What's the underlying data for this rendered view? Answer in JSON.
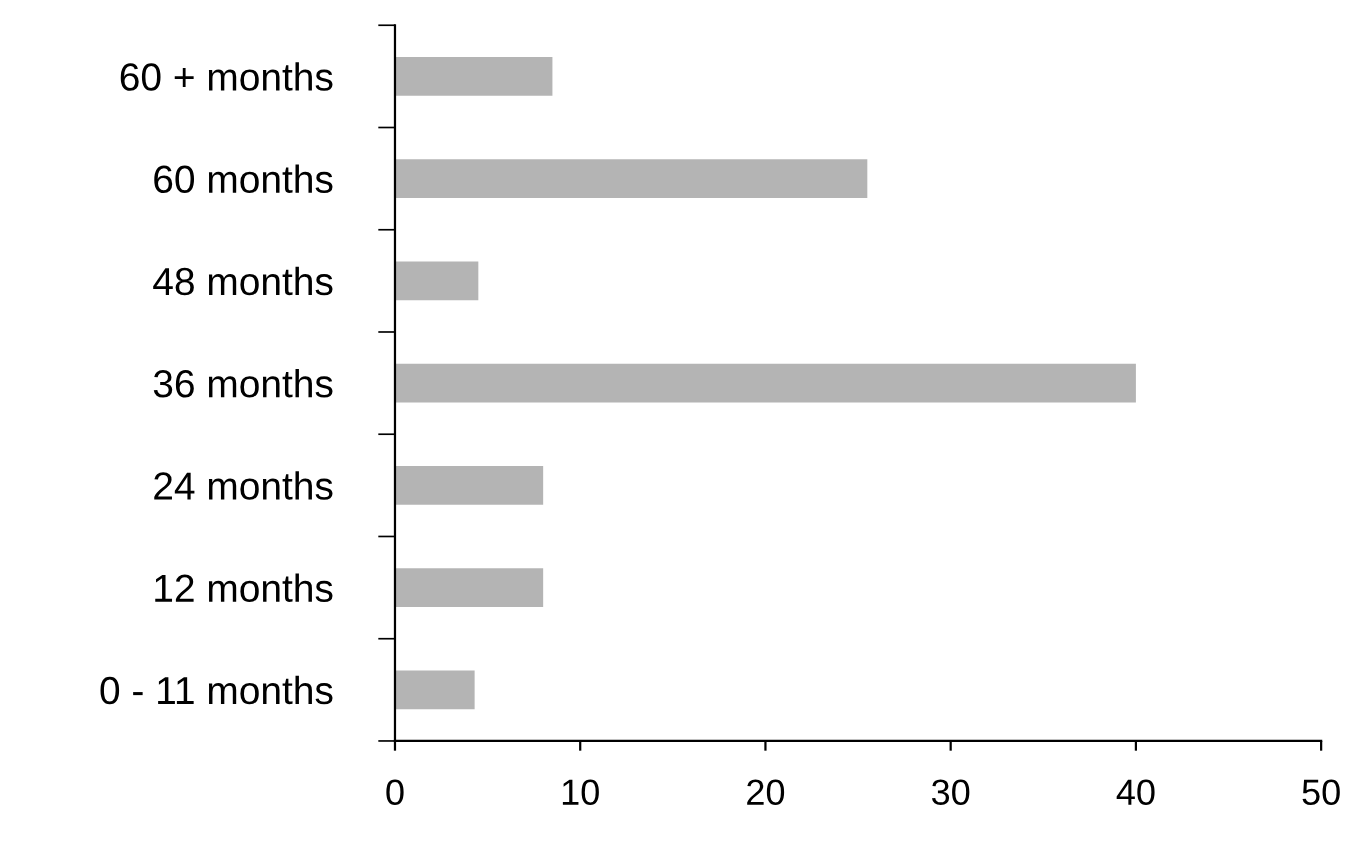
{
  "chart_data": {
    "type": "bar",
    "orientation": "horizontal",
    "categories": [
      "60 + months",
      "60 months",
      "48 months",
      "36 months",
      "24 months",
      "12 months",
      "0 - 11 months"
    ],
    "values": [
      8.5,
      25.5,
      4.5,
      40,
      8,
      8,
      4.3
    ],
    "color": "#b4b4b4",
    "xlim": [
      0,
      50
    ],
    "xticks": [
      0,
      10,
      20,
      30,
      40,
      50
    ],
    "grid": false,
    "legend": false
  }
}
